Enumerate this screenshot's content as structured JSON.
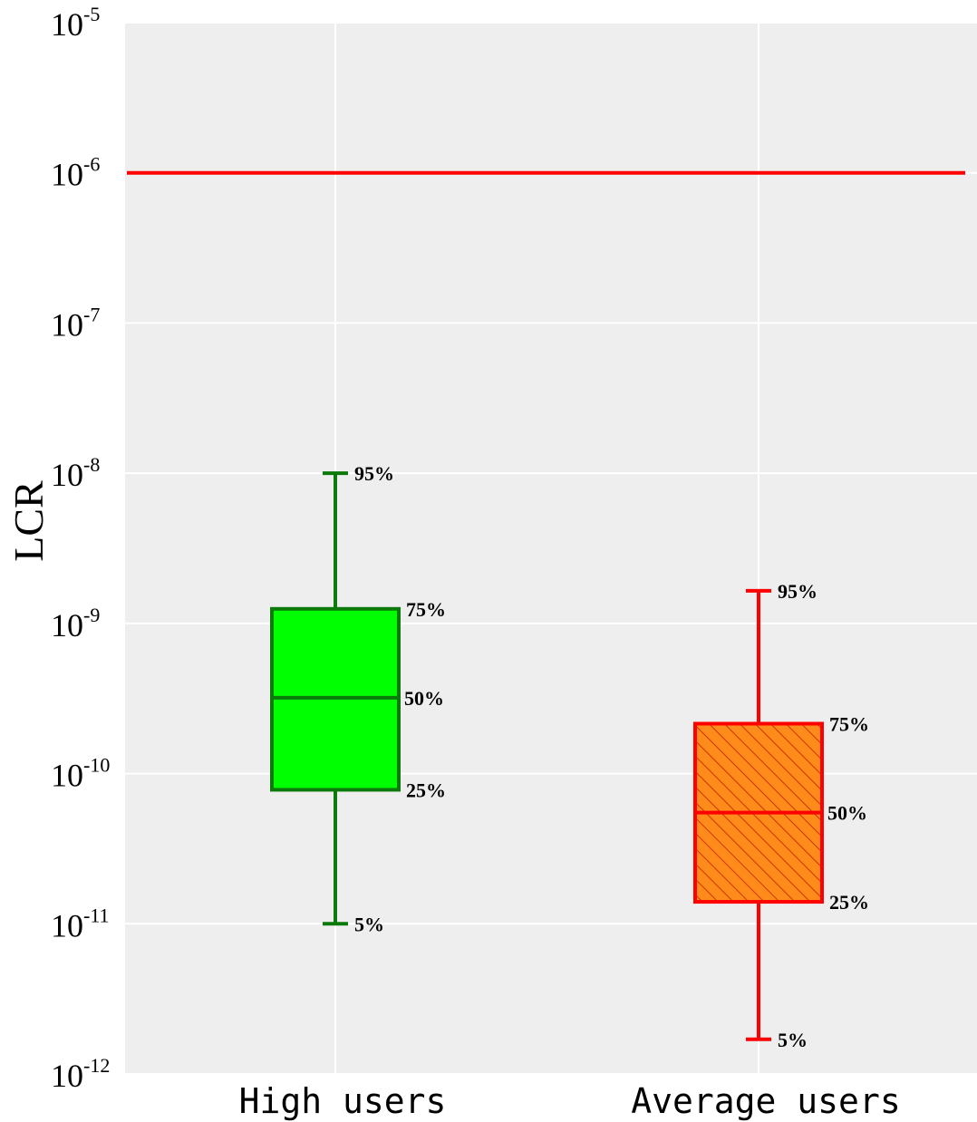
{
  "chart_data": {
    "type": "box",
    "title": "",
    "ylabel": "LCR",
    "yscale": "log",
    "ylim": [
      1e-12,
      1e-05
    ],
    "yticks": [
      {
        "value": 1e-05,
        "base": "10",
        "exp": "-5"
      },
      {
        "value": 1e-06,
        "base": "10",
        "exp": "-6"
      },
      {
        "value": 1e-07,
        "base": "10",
        "exp": "-7"
      },
      {
        "value": 1e-08,
        "base": "10",
        "exp": "-8"
      },
      {
        "value": 1e-09,
        "base": "10",
        "exp": "-9"
      },
      {
        "value": 1e-10,
        "base": "10",
        "exp": "-10"
      },
      {
        "value": 1e-11,
        "base": "10",
        "exp": "-11"
      },
      {
        "value": 1e-12,
        "base": "10",
        "exp": "-12"
      }
    ],
    "grid": true,
    "reference_line": {
      "value": 1e-06,
      "color": "#ff0000"
    },
    "percentile_labels": {
      "p5": "5%",
      "p25": "25%",
      "p50": "50%",
      "p75": "75%",
      "p95": "95%"
    },
    "categories": [
      "High users",
      "Average users"
    ],
    "boxes": [
      {
        "name": "High users",
        "p5": 1e-11,
        "p25": 7.8e-11,
        "p50": 3.2e-10,
        "p75": 1.25e-09,
        "p95": 1e-08,
        "fill": "#00ff00",
        "stroke": "#0b7a0b",
        "hatched": false
      },
      {
        "name": "Average users",
        "p5": 1.7e-12,
        "p25": 1.4e-11,
        "p50": 5.5e-11,
        "p75": 2.15e-10,
        "p95": 1.65e-09,
        "fill": "#ff8c1a",
        "stroke": "#ff0000",
        "hatched": true
      }
    ],
    "colors": {
      "panel": "#eeeeee",
      "grid": "#ffffff"
    }
  }
}
